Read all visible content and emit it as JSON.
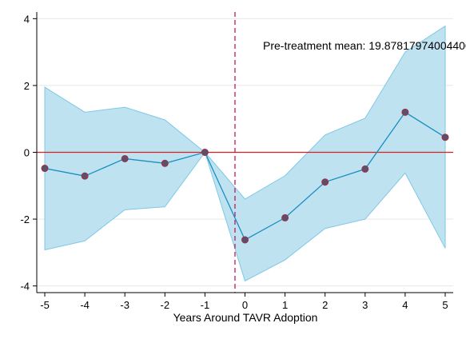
{
  "chart_data": {
    "type": "line",
    "title": "",
    "xlabel": "Years Around TAVR Adoption",
    "ylabel": "",
    "xlim": [
      -5.2,
      5.2
    ],
    "ylim": [
      -4.2,
      4.2
    ],
    "x_ticks": [
      -5,
      -4,
      -3,
      -2,
      -1,
      0,
      1,
      2,
      3,
      4,
      5
    ],
    "y_ticks": [
      -4,
      -2,
      0,
      2,
      4
    ],
    "grid": "horizontal",
    "series": [
      {
        "type": "line",
        "x": [
          -5,
          -4,
          -3,
          -2,
          -1,
          0,
          1,
          2,
          3,
          4,
          5
        ],
        "values": [
          -0.48,
          -0.71,
          -0.19,
          -0.33,
          0.0,
          -2.62,
          -1.96,
          -0.89,
          -0.5,
          1.2,
          0.45
        ]
      }
    ],
    "confidence_band": {
      "x": [
        -5,
        -4,
        -3,
        -2,
        -1,
        0,
        1,
        2,
        3,
        4,
        5
      ],
      "lower": [
        -2.92,
        -2.65,
        -1.72,
        -1.63,
        0.0,
        -3.85,
        -3.22,
        -2.28,
        -2.0,
        -0.62,
        -2.87
      ],
      "upper": [
        1.95,
        1.2,
        1.35,
        0.97,
        0.0,
        -1.4,
        -0.7,
        0.52,
        1.02,
        3.0,
        3.78
      ]
    },
    "reference_line_y": 0,
    "event_line_x": -0.25,
    "annotation": "Pre-treatment mean: 19.87817974004400",
    "colors": {
      "line": "#1a8fc3",
      "band_fill": "#b8dff0",
      "band_stroke": "#7ec8e6",
      "marker": "#5d4e6f",
      "marker_stroke": "#a0303a",
      "zero_line": "#d42020",
      "event_line": "#c2185b",
      "grid": "#e8e8e8"
    }
  }
}
